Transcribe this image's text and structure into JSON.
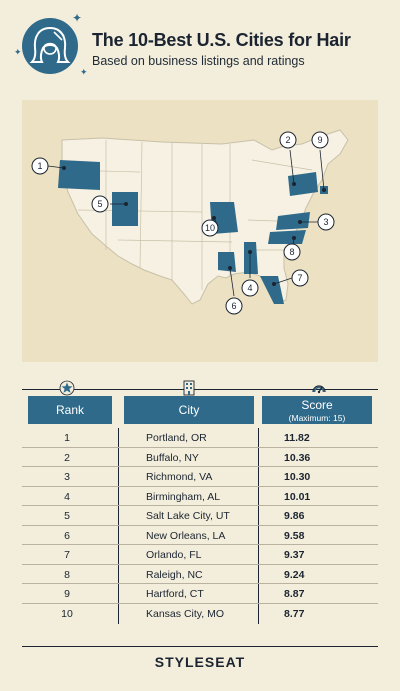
{
  "header": {
    "title": "The 10-Best U.S. Cities for Hair",
    "subtitle": "Based on business listings and ratings",
    "logo_icon": "woman-hair-icon"
  },
  "map": {
    "highlight_color": "#2f6a8a",
    "base_color": "#f6f1e2",
    "markers": [
      {
        "label": "1",
        "state": "OR"
      },
      {
        "label": "2",
        "state": "NY"
      },
      {
        "label": "3",
        "state": "VA"
      },
      {
        "label": "4",
        "state": "AL"
      },
      {
        "label": "5",
        "state": "UT"
      },
      {
        "label": "6",
        "state": "LA"
      },
      {
        "label": "7",
        "state": "FL"
      },
      {
        "label": "8",
        "state": "NC"
      },
      {
        "label": "9",
        "state": "CT"
      },
      {
        "label": "10",
        "state": "MO"
      }
    ]
  },
  "table": {
    "headers": {
      "rank": "Rank",
      "city": "City",
      "score": "Score",
      "score_note": "(Maximum: 15)"
    },
    "rows": [
      {
        "rank": "1",
        "city": "Portland, OR",
        "score": "11.82"
      },
      {
        "rank": "2",
        "city": "Buffalo, NY",
        "score": "10.36"
      },
      {
        "rank": "3",
        "city": "Richmond, VA",
        "score": "10.30"
      },
      {
        "rank": "4",
        "city": "Birmingham, AL",
        "score": "10.01"
      },
      {
        "rank": "5",
        "city": "Salt Lake City, UT",
        "score": "9.86"
      },
      {
        "rank": "6",
        "city": "New Orleans, LA",
        "score": "9.58"
      },
      {
        "rank": "7",
        "city": "Orlando, FL",
        "score": "9.37"
      },
      {
        "rank": "8",
        "city": "Raleigh, NC",
        "score": "9.24"
      },
      {
        "rank": "9",
        "city": "Hartford, CT",
        "score": "8.87"
      },
      {
        "rank": "10",
        "city": "Kansas City, MO",
        "score": "8.77"
      }
    ]
  },
  "footer": {
    "brand": "STYLESEAT"
  }
}
